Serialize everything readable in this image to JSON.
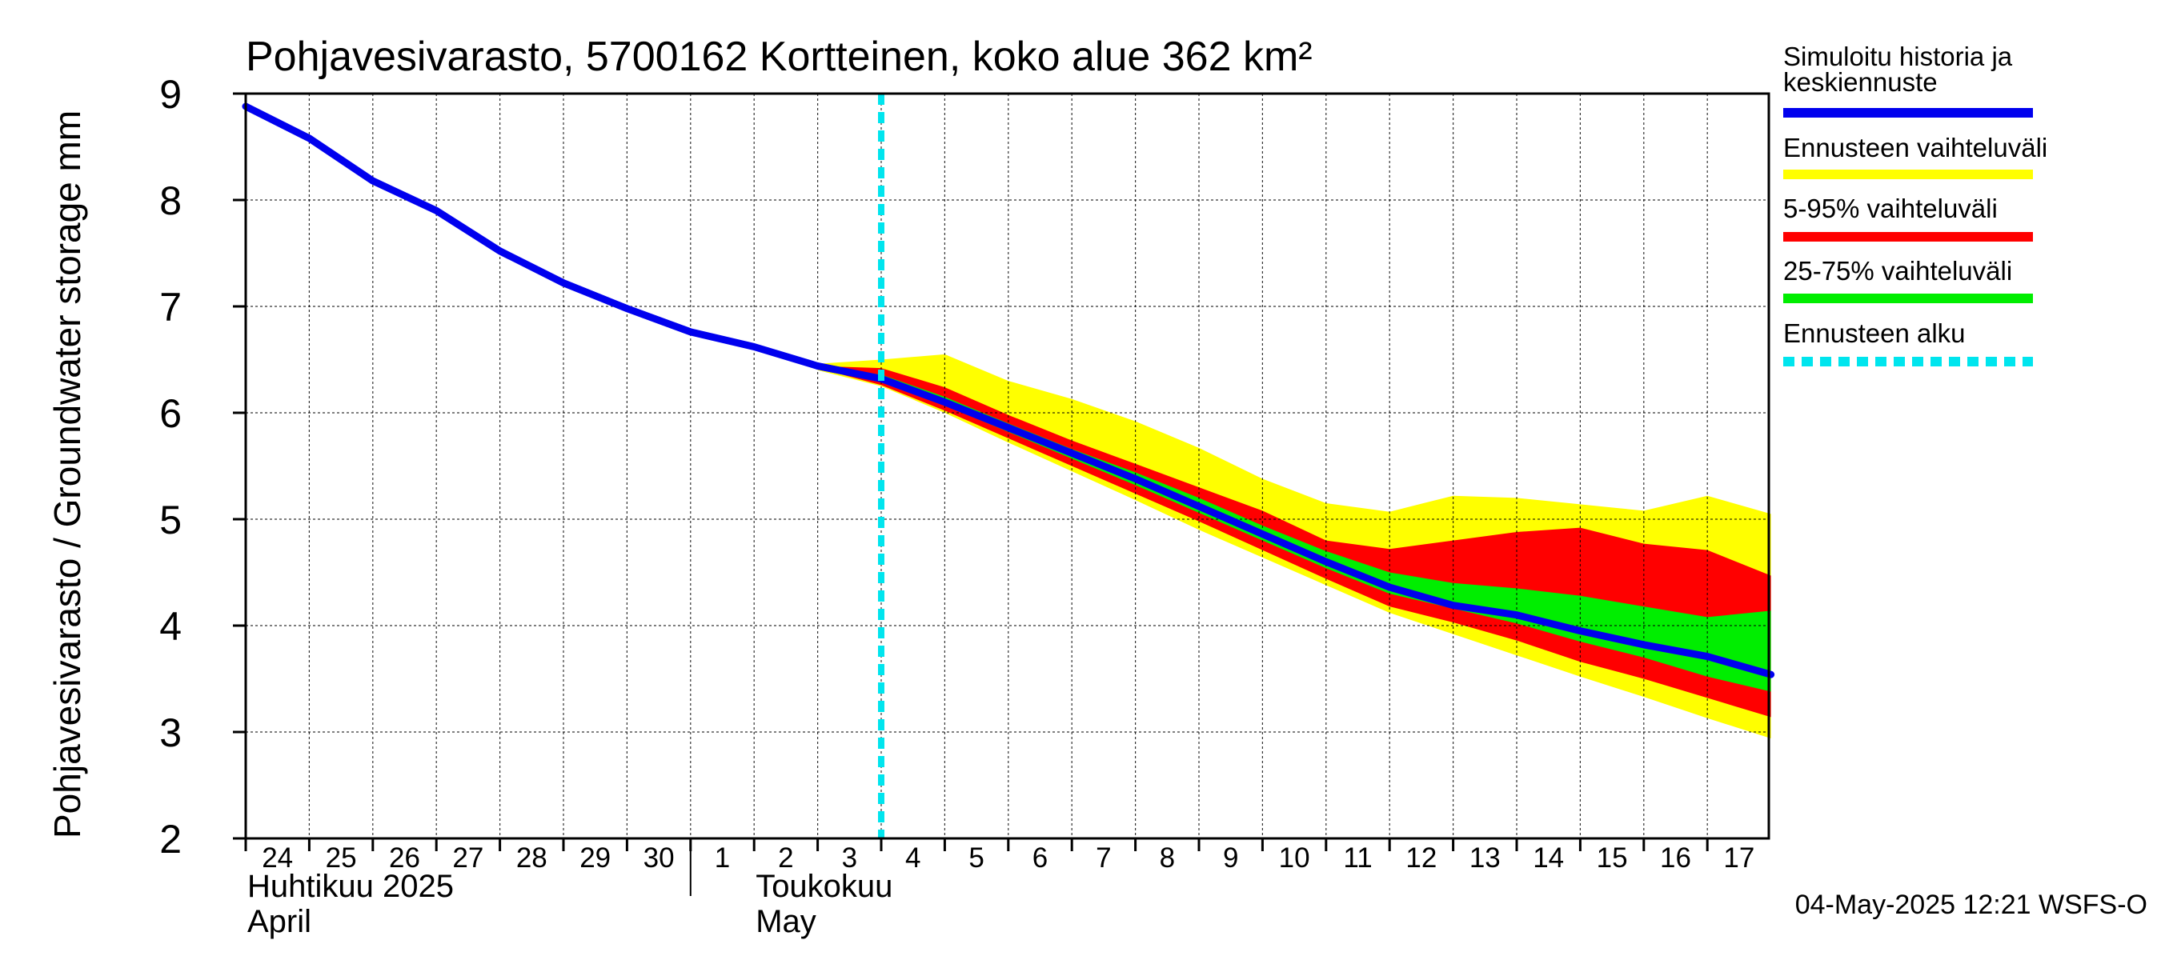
{
  "chart_data": {
    "type": "area",
    "title": "Pohjavesivarasto, 5700162 Kortteinen, koko alue 362 km²",
    "ylabel": "Pohjavesivarasto / Groundwater storage   mm",
    "ylim": [
      2,
      9
    ],
    "yticks": [
      "2",
      "3",
      "4",
      "5",
      "6",
      "7",
      "8",
      "9"
    ],
    "xlim": [
      0,
      24
    ],
    "xticks": [
      {
        "label": "24",
        "x": 0
      },
      {
        "label": "25",
        "x": 1
      },
      {
        "label": "26",
        "x": 2
      },
      {
        "label": "27",
        "x": 3
      },
      {
        "label": "28",
        "x": 4
      },
      {
        "label": "29",
        "x": 5
      },
      {
        "label": "30",
        "x": 6
      },
      {
        "label": "1",
        "x": 7
      },
      {
        "label": "2",
        "x": 8
      },
      {
        "label": "3",
        "x": 9
      },
      {
        "label": "4",
        "x": 10
      },
      {
        "label": "5",
        "x": 11
      },
      {
        "label": "6",
        "x": 12
      },
      {
        "label": "7",
        "x": 13
      },
      {
        "label": "8",
        "x": 14
      },
      {
        "label": "9",
        "x": 15
      },
      {
        "label": "10",
        "x": 16
      },
      {
        "label": "11",
        "x": 17
      },
      {
        "label": "12",
        "x": 18
      },
      {
        "label": "13",
        "x": 19
      },
      {
        "label": "14",
        "x": 20
      },
      {
        "label": "15",
        "x": 21
      },
      {
        "label": "16",
        "x": 22
      },
      {
        "label": "17",
        "x": 23
      }
    ],
    "month_labels": [
      {
        "fi": "Huhtikuu  2025",
        "en": "April",
        "x": 0
      },
      {
        "fi": "Toukokuu",
        "en": "May",
        "x": 8
      }
    ],
    "month_divider_x": 7,
    "forecast_start_x": 10,
    "history": {
      "x": [
        0,
        1,
        2,
        3,
        4,
        5,
        6,
        7,
        8,
        9,
        10
      ],
      "y": [
        8.88,
        8.58,
        8.18,
        7.9,
        7.52,
        7.22,
        6.98,
        6.76,
        6.62,
        6.44,
        6.32
      ]
    },
    "series": [
      {
        "name": "Ennusteen vaihteluväli",
        "color": "#ffff00",
        "kind": "band",
        "x": [
          9,
          10,
          11,
          12,
          13,
          14,
          15,
          16,
          17,
          18,
          19,
          20,
          21,
          22,
          23,
          24
        ],
        "upper": [
          6.46,
          6.5,
          6.55,
          6.3,
          6.13,
          5.92,
          5.67,
          5.38,
          5.15,
          5.07,
          5.22,
          5.2,
          5.14,
          5.08,
          5.22,
          5.05
        ],
        "lower": [
          6.4,
          6.25,
          6.0,
          5.72,
          5.45,
          5.18,
          4.9,
          4.64,
          4.38,
          4.12,
          3.92,
          3.72,
          3.52,
          3.33,
          3.13,
          2.94
        ]
      },
      {
        "name": "5-95% vaihteluväli",
        "color": "#ff0000",
        "kind": "band",
        "x": [
          9,
          10,
          11,
          12,
          13,
          14,
          15,
          16,
          17,
          18,
          19,
          20,
          21,
          22,
          23,
          24
        ],
        "upper": [
          6.44,
          6.42,
          6.24,
          5.98,
          5.74,
          5.52,
          5.3,
          5.08,
          4.8,
          4.72,
          4.8,
          4.88,
          4.92,
          4.77,
          4.71,
          4.47
        ],
        "lower": [
          6.42,
          6.26,
          6.02,
          5.76,
          5.5,
          5.24,
          4.98,
          4.71,
          4.44,
          4.18,
          4.03,
          3.86,
          3.66,
          3.5,
          3.32,
          3.14
        ]
      },
      {
        "name": "25-75% vaihteluväli",
        "color": "#00ee00",
        "kind": "band",
        "x": [
          9,
          10,
          11,
          12,
          13,
          14,
          15,
          16,
          17,
          18,
          19,
          20,
          21,
          22,
          23,
          24
        ],
        "upper": [
          6.43,
          6.36,
          6.15,
          5.9,
          5.66,
          5.44,
          5.2,
          4.94,
          4.7,
          4.5,
          4.4,
          4.35,
          4.28,
          4.18,
          4.08,
          4.14
        ],
        "lower": [
          6.43,
          6.3,
          6.07,
          5.82,
          5.57,
          5.32,
          5.06,
          4.8,
          4.54,
          4.3,
          4.16,
          4.02,
          3.85,
          3.7,
          3.52,
          3.38
        ]
      },
      {
        "name": "Simuloitu historia ja keskiennuste",
        "color": "#0000ee",
        "kind": "line",
        "x": [
          9,
          10,
          11,
          12,
          13,
          14,
          15,
          16,
          17,
          18,
          19,
          20,
          21,
          22,
          23,
          24
        ],
        "y": [
          6.44,
          6.32,
          6.1,
          5.86,
          5.62,
          5.38,
          5.12,
          4.86,
          4.6,
          4.36,
          4.19,
          4.1,
          3.95,
          3.82,
          3.71,
          3.54
        ]
      }
    ],
    "legend": {
      "placement": "right",
      "items": [
        {
          "label_lines": [
            "Simuloitu historia ja",
            "keskiennuste"
          ],
          "color": "#0000ee",
          "style": "solid"
        },
        {
          "label_lines": [
            "Ennusteen vaihteluväli"
          ],
          "color": "#ffff00",
          "style": "solid"
        },
        {
          "label_lines": [
            "5-95% vaihteluväli"
          ],
          "color": "#ff0000",
          "style": "solid"
        },
        {
          "label_lines": [
            "25-75% vaihteluväli"
          ],
          "color": "#00ee00",
          "style": "solid"
        },
        {
          "label_lines": [
            "Ennusteen alku"
          ],
          "color": "#00e5ee",
          "style": "dashed"
        }
      ]
    },
    "grid": true
  },
  "timestamp": "04-May-2025 12:21 WSFS-O"
}
